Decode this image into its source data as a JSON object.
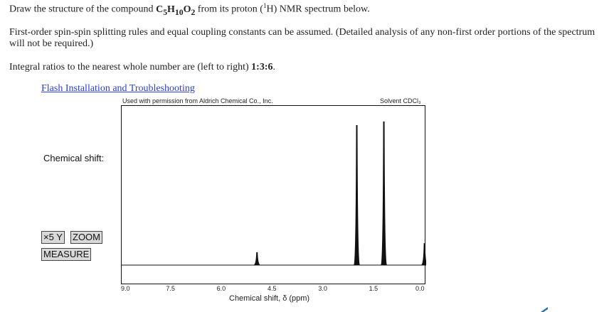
{
  "question": {
    "line1_pre": "Draw the structure of the compound ",
    "formula": {
      "c": "C",
      "c_sub": "5",
      "h": "H",
      "h_sub": "10",
      "o": "O",
      "o_sub": "2"
    },
    "line1_post": " from its proton (",
    "nucleus_sup": "1",
    "nucleus": "H",
    "line1_end": ") NMR spectrum below.",
    "line2": "First-order spin-spin splitting rules and equal coupling constants can be assumed. (Detailed analysis of any non-first order portions of the spectrum will not be required.)",
    "line3_pre": "Integral ratios to the nearest whole number are (left to right) ",
    "integral_ratios": "1:3:6",
    "line3_end": "."
  },
  "link_text": "Flash Installation and Troubleshooting",
  "credit_left": "Used with permission from Aldrich Chemical Co., Inc.",
  "credit_right": "Solvent CDCl₃",
  "chemical_shift_label": "Chemical shift:",
  "buttons": {
    "x5y": "×5 Y",
    "zoom": "ZOOM",
    "measure": "MEASURE"
  },
  "chart_data": {
    "type": "line",
    "xlabel": "Chemical shift, δ (ppm)",
    "xlim": [
      9.0,
      0.0
    ],
    "x_ticks": [
      "9.0",
      "7.5",
      "6.0",
      "4.5",
      "3.0",
      "1.5",
      "0.0"
    ],
    "peaks": [
      {
        "ppm": 5.0,
        "relative_height": 0.07
      },
      {
        "ppm": 2.05,
        "relative_height": 0.78
      },
      {
        "ppm": 1.25,
        "relative_height": 0.8
      },
      {
        "ppm": 0.05,
        "relative_height": 0.12
      }
    ],
    "colors": {
      "trace": "#111111",
      "frame": "#111111"
    }
  }
}
